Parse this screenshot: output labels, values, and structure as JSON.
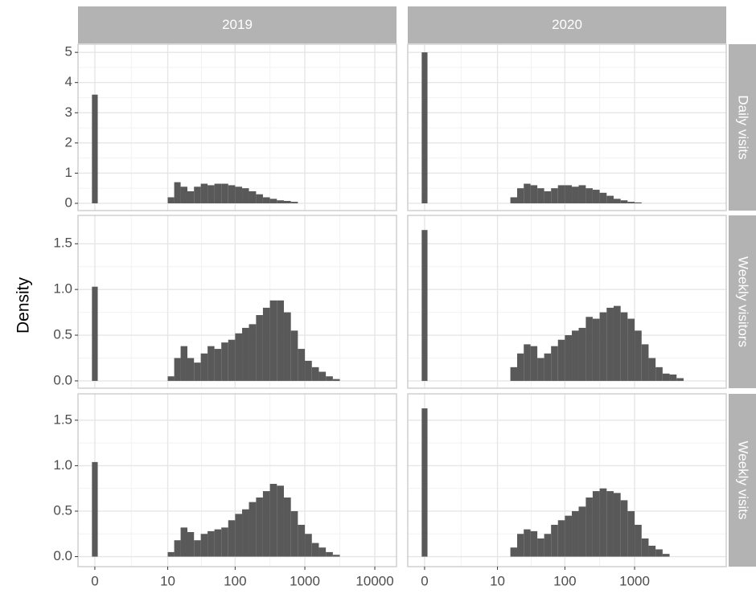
{
  "chart_data": {
    "type": "histogram",
    "ylabel": "Density",
    "xscale": "pseudo_log",
    "grid": true,
    "color": "#595959",
    "bins": [
      -0.1,
      0.1,
      10,
      12.6,
      15.8,
      20,
      25.1,
      31.6,
      39.8,
      50.1,
      63.1,
      79.4,
      100,
      126,
      158,
      200,
      251,
      316,
      398,
      501,
      631,
      794,
      1000,
      1259,
      1585,
      1995,
      2512,
      3162,
      3981,
      5012
    ],
    "columns": [
      {
        "label": "2019",
        "xlim": [
          -0.74,
          20400
        ],
        "xticks": [
          0,
          10,
          100,
          1000,
          10000
        ]
      },
      {
        "label": "2020",
        "xlim": [
          -0.74,
          20400
        ],
        "xticks": [
          0,
          10,
          100,
          1000
        ]
      }
    ],
    "rows": [
      {
        "label": "Daily visits",
        "ylim": [
          -0.24,
          5.27
        ],
        "yticks": [
          0,
          1,
          2,
          3,
          4,
          5
        ],
        "panels": [
          {
            "values": [
              3.6,
              0,
              0.2,
              0.7,
              0.55,
              0.4,
              0.55,
              0.65,
              0.6,
              0.65,
              0.65,
              0.6,
              0.55,
              0.5,
              0.4,
              0.3,
              0.2,
              0.15,
              0.1,
              0.08,
              0.05,
              0,
              0,
              0,
              0,
              0,
              0,
              0,
              0
            ]
          },
          {
            "values": [
              5.0,
              0,
              0,
              0,
              0.2,
              0.5,
              0.65,
              0.6,
              0.5,
              0.4,
              0.5,
              0.6,
              0.6,
              0.55,
              0.6,
              0.5,
              0.45,
              0.35,
              0.25,
              0.15,
              0.1,
              0.05,
              0.03,
              0,
              0,
              0,
              0,
              0,
              0
            ]
          }
        ]
      },
      {
        "label": "Weekly visitors",
        "ylim": [
          -0.08,
          1.81
        ],
        "yticks": [
          {
            "value": 0,
            "label": "0.0"
          },
          {
            "value": 0.5,
            "label": "0.5"
          },
          {
            "value": 1,
            "label": "1.0"
          },
          {
            "value": 1.5,
            "label": "1.5"
          }
        ],
        "panels": [
          {
            "values": [
              1.03,
              0,
              0.05,
              0.25,
              0.38,
              0.25,
              0.2,
              0.3,
              0.38,
              0.35,
              0.42,
              0.45,
              0.52,
              0.58,
              0.62,
              0.72,
              0.8,
              0.88,
              0.88,
              0.75,
              0.55,
              0.35,
              0.22,
              0.15,
              0.1,
              0.05,
              0.02,
              0,
              0
            ]
          },
          {
            "values": [
              1.65,
              0,
              0,
              0,
              0.15,
              0.3,
              0.4,
              0.38,
              0.25,
              0.3,
              0.38,
              0.45,
              0.5,
              0.55,
              0.58,
              0.7,
              0.68,
              0.75,
              0.8,
              0.82,
              0.75,
              0.68,
              0.55,
              0.4,
              0.25,
              0.15,
              0.08,
              0.07,
              0.03
            ]
          }
        ]
      },
      {
        "label": "Weekly visits",
        "ylim": [
          -0.11,
          1.79
        ],
        "yticks": [
          {
            "value": 0,
            "label": "0.0"
          },
          {
            "value": 0.5,
            "label": "0.5"
          },
          {
            "value": 1,
            "label": "1.0"
          },
          {
            "value": 1.5,
            "label": "1.5"
          }
        ],
        "panels": [
          {
            "values": [
              1.04,
              0,
              0.05,
              0.18,
              0.32,
              0.27,
              0.18,
              0.25,
              0.28,
              0.3,
              0.32,
              0.4,
              0.47,
              0.52,
              0.6,
              0.65,
              0.72,
              0.8,
              0.78,
              0.65,
              0.5,
              0.35,
              0.25,
              0.15,
              0.1,
              0.05,
              0.02,
              0,
              0
            ]
          },
          {
            "values": [
              1.63,
              0,
              0,
              0,
              0.1,
              0.25,
              0.3,
              0.28,
              0.2,
              0.25,
              0.35,
              0.4,
              0.45,
              0.5,
              0.55,
              0.65,
              0.72,
              0.75,
              0.72,
              0.7,
              0.62,
              0.5,
              0.35,
              0.2,
              0.12,
              0.08,
              0.03,
              0,
              0
            ]
          }
        ]
      }
    ]
  }
}
